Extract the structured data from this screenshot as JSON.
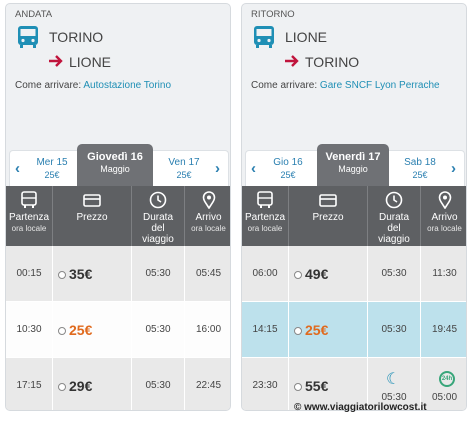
{
  "outbound": {
    "title": "ANDATA",
    "from": "TORINO",
    "to": "LIONE",
    "how_label": "Come arrivare:",
    "how_link": "Autostazione Torino",
    "prev": {
      "date": "Mer 15",
      "price": "25€"
    },
    "selected": {
      "day": "Giovedì 16",
      "month": "Maggio"
    },
    "next": {
      "date": "Ven 17",
      "price": "25€"
    },
    "rows": [
      {
        "dep": "00:15",
        "price": "35€",
        "dur": "05:30",
        "arr": "05:45"
      },
      {
        "dep": "10:30",
        "price": "25€",
        "dur": "05:30",
        "arr": "16:00"
      },
      {
        "dep": "17:15",
        "price": "29€",
        "dur": "05:30",
        "arr": "22:45"
      }
    ]
  },
  "return": {
    "title": "RITORNO",
    "from": "LIONE",
    "to": "TORINO",
    "how_label": "Come arrivare:",
    "how_link": "Gare SNCF Lyon Perrache",
    "prev": {
      "date": "Gio 16",
      "price": "25€"
    },
    "selected": {
      "day": "Venerdì 17",
      "month": "Maggio"
    },
    "next": {
      "date": "Sab 18",
      "price": "25€"
    },
    "rows": [
      {
        "dep": "06:00",
        "price": "49€",
        "dur": "05:30",
        "arr": "11:30"
      },
      {
        "dep": "14:15",
        "price": "25€",
        "dur": "05:30",
        "arr": "19:45"
      },
      {
        "dep": "23:30",
        "price": "55€",
        "dur": "05:30",
        "arr": "05:00",
        "dur_icon": "moon-icon",
        "arr_icon": "24h-icon",
        "arr_icon_text": "24h"
      }
    ]
  },
  "headers": {
    "dep": "Partenza",
    "dep_sub": "ora locale",
    "price": "Prezzo",
    "dur1": "Durata",
    "dur2": "del",
    "dur3": "viaggio",
    "arr": "Arrivo",
    "arr_sub": "ora locale"
  },
  "colors": {
    "accent": "#1f8fb5",
    "arrow": "#c0143c",
    "price_highlight": "#e06a1e",
    "selected_row": "#bde1ec",
    "header": "#5e6063"
  },
  "watermark": "© www.viaggiatorilowcost.it"
}
